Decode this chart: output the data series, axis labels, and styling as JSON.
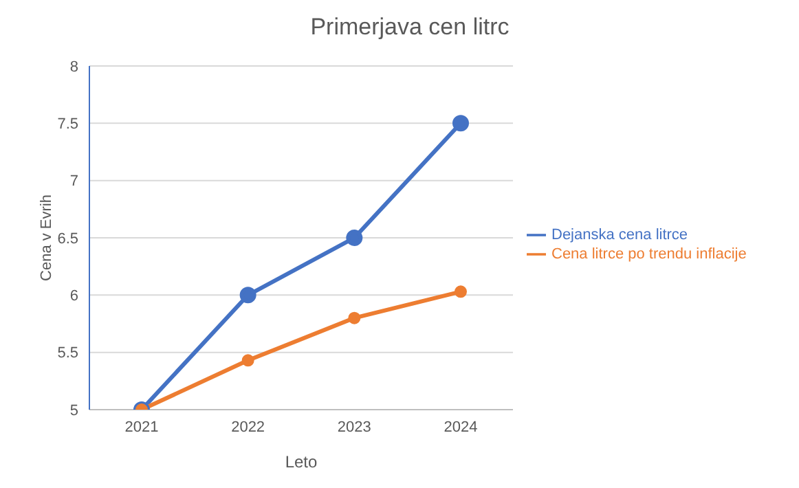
{
  "chart_data": {
    "type": "line",
    "title": "Primerjava cen litrc",
    "xlabel": "Leto",
    "ylabel": "Cena v Evrih",
    "categories": [
      "2021",
      "2022",
      "2023",
      "2024"
    ],
    "series": [
      {
        "name": "Dejanska cena litrce",
        "color": "#4472c4",
        "values": [
          5,
          6,
          6.5,
          7.5
        ]
      },
      {
        "name": "Cena litrce po trendu  inflacije",
        "color": "#ed7d31",
        "values": [
          5,
          5.43,
          5.8,
          6.03
        ]
      }
    ],
    "ylim": [
      5,
      8
    ],
    "yticks": [
      {
        "value": 5,
        "label": "5"
      },
      {
        "value": 5.5,
        "label": "5.5"
      },
      {
        "value": 6,
        "label": "6"
      },
      {
        "value": 6.5,
        "label": "6.5"
      },
      {
        "value": 7,
        "label": "7"
      },
      {
        "value": 7.5,
        "label": "7.5"
      },
      {
        "value": 8,
        "label": "8"
      }
    ],
    "grid": "y",
    "legend": "right",
    "marker": "circle",
    "line_style": "solid"
  }
}
